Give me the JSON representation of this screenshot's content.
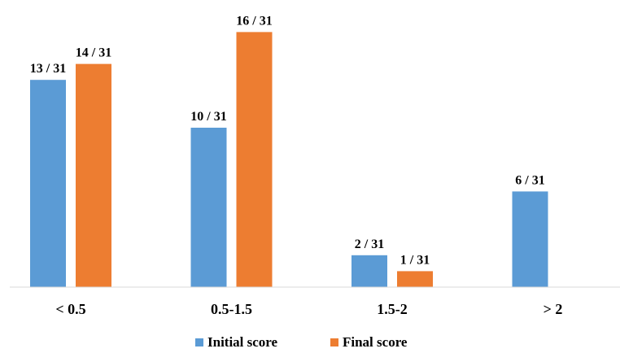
{
  "chart_data": {
    "type": "bar",
    "categories": [
      "< 0.5",
      "0.5-1.5",
      "1.5-2",
      "> 2"
    ],
    "series": [
      {
        "name": "Initial score",
        "values": [
          13,
          10,
          2,
          6
        ],
        "labels": [
          "13 / 31",
          "10 / 31",
          "2 / 31",
          "6 / 31"
        ],
        "color": "#5B9BD5"
      },
      {
        "name": "Final score",
        "values": [
          14,
          16,
          1,
          0
        ],
        "labels": [
          "14 / 31",
          "16 / 31",
          "1 / 31",
          ""
        ],
        "color": "#ED7D31"
      }
    ],
    "title": "",
    "xlabel": "",
    "ylabel": "",
    "ylim": [
      0,
      16
    ],
    "grid": false,
    "legend": "bottom-center"
  }
}
